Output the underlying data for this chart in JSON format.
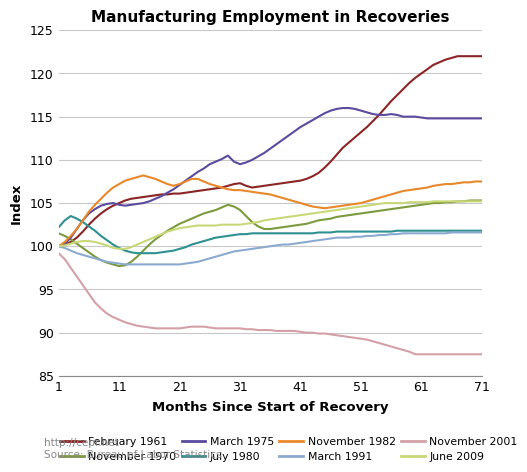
{
  "title": "Manufacturing Employment in Recoveries",
  "xlabel": "Months Since Start of Recovery",
  "ylabel": "Index",
  "xlim": [
    1,
    71
  ],
  "ylim": [
    85,
    125
  ],
  "yticks": [
    85,
    90,
    95,
    100,
    105,
    110,
    115,
    120,
    125
  ],
  "xticks": [
    1,
    11,
    21,
    31,
    41,
    51,
    61,
    71
  ],
  "source_text": "http://cepr.net\nSource: Bureau of Labor Statistics",
  "legend_order": [
    "February 1961",
    "November 1970",
    "March 1975",
    "July 1980",
    "November 1982",
    "March 1991",
    "November 2001",
    "June 2009"
  ],
  "series": [
    {
      "label": "February 1961",
      "color": "#8B2525",
      "data": [
        100.0,
        100.2,
        100.5,
        101.0,
        101.7,
        102.5,
        103.2,
        103.8,
        104.3,
        104.7,
        105.0,
        105.3,
        105.5,
        105.6,
        105.7,
        105.8,
        105.9,
        106.0,
        106.0,
        106.1,
        106.1,
        106.2,
        106.3,
        106.4,
        106.5,
        106.6,
        106.7,
        106.8,
        107.0,
        107.2,
        107.3,
        107.0,
        106.8,
        106.9,
        107.0,
        107.1,
        107.2,
        107.3,
        107.4,
        107.5,
        107.6,
        107.8,
        108.1,
        108.5,
        109.1,
        109.8,
        110.6,
        111.4,
        112.0,
        112.6,
        113.2,
        113.8,
        114.5,
        115.2,
        116.0,
        116.8,
        117.5,
        118.2,
        118.9,
        119.5,
        120.0,
        120.5,
        121.0,
        121.3,
        121.6,
        121.8,
        122.0,
        122.0,
        122.0,
        122.0,
        122.0
      ]
    },
    {
      "label": "November 1970",
      "color": "#7B9B3E",
      "data": [
        101.5,
        101.2,
        100.8,
        100.3,
        99.8,
        99.3,
        98.8,
        98.4,
        98.1,
        97.9,
        97.7,
        97.8,
        98.2,
        98.8,
        99.5,
        100.2,
        100.8,
        101.3,
        101.8,
        102.2,
        102.6,
        102.9,
        103.2,
        103.5,
        103.8,
        104.0,
        104.2,
        104.5,
        104.8,
        104.6,
        104.2,
        103.5,
        102.8,
        102.3,
        102.0,
        102.0,
        102.1,
        102.2,
        102.3,
        102.4,
        102.5,
        102.6,
        102.8,
        103.0,
        103.1,
        103.2,
        103.4,
        103.5,
        103.6,
        103.7,
        103.8,
        103.9,
        104.0,
        104.1,
        104.2,
        104.3,
        104.4,
        104.5,
        104.6,
        104.7,
        104.8,
        104.9,
        105.0,
        105.0,
        105.1,
        105.1,
        105.2,
        105.2,
        105.3,
        105.3,
        105.3
      ]
    },
    {
      "label": "March 1975",
      "color": "#5B4A9E",
      "data": [
        100.0,
        100.3,
        101.0,
        102.0,
        103.0,
        103.8,
        104.3,
        104.7,
        104.9,
        105.0,
        104.8,
        104.7,
        104.8,
        104.9,
        105.0,
        105.2,
        105.5,
        105.8,
        106.2,
        106.6,
        107.1,
        107.6,
        108.1,
        108.6,
        109.0,
        109.5,
        109.8,
        110.1,
        110.5,
        109.8,
        109.5,
        109.7,
        110.0,
        110.4,
        110.8,
        111.3,
        111.8,
        112.3,
        112.8,
        113.3,
        113.8,
        114.2,
        114.6,
        115.0,
        115.4,
        115.7,
        115.9,
        116.0,
        116.0,
        115.9,
        115.7,
        115.5,
        115.3,
        115.2,
        115.2,
        115.3,
        115.2,
        115.0,
        115.0,
        115.0,
        114.9,
        114.8,
        114.8,
        114.8,
        114.8,
        114.8,
        114.8,
        114.8,
        114.8,
        114.8,
        114.8
      ]
    },
    {
      "label": "July 1980",
      "color": "#2E9090",
      "data": [
        102.2,
        103.0,
        103.5,
        103.2,
        102.8,
        102.3,
        101.8,
        101.2,
        100.7,
        100.2,
        99.8,
        99.5,
        99.3,
        99.2,
        99.2,
        99.2,
        99.2,
        99.3,
        99.4,
        99.5,
        99.7,
        99.9,
        100.2,
        100.4,
        100.6,
        100.8,
        101.0,
        101.1,
        101.2,
        101.3,
        101.4,
        101.4,
        101.5,
        101.5,
        101.5,
        101.5,
        101.5,
        101.5,
        101.5,
        101.5,
        101.5,
        101.5,
        101.5,
        101.6,
        101.6,
        101.6,
        101.7,
        101.7,
        101.7,
        101.7,
        101.7,
        101.7,
        101.7,
        101.7,
        101.7,
        101.7,
        101.8,
        101.8,
        101.8,
        101.8,
        101.8,
        101.8,
        101.8,
        101.8,
        101.8,
        101.8,
        101.8,
        101.8,
        101.8,
        101.8,
        101.8
      ]
    },
    {
      "label": "November 1982",
      "color": "#E8882A",
      "data": [
        100.0,
        100.5,
        101.2,
        102.0,
        103.0,
        104.0,
        104.8,
        105.5,
        106.2,
        106.8,
        107.2,
        107.6,
        107.8,
        108.0,
        108.2,
        108.0,
        107.8,
        107.5,
        107.2,
        107.0,
        107.2,
        107.5,
        107.8,
        107.8,
        107.5,
        107.2,
        107.0,
        106.8,
        106.6,
        106.5,
        106.5,
        106.4,
        106.3,
        106.2,
        106.1,
        106.0,
        105.8,
        105.6,
        105.4,
        105.2,
        105.0,
        104.8,
        104.6,
        104.5,
        104.4,
        104.5,
        104.6,
        104.7,
        104.8,
        104.9,
        105.0,
        105.2,
        105.4,
        105.6,
        105.8,
        106.0,
        106.2,
        106.4,
        106.5,
        106.6,
        106.7,
        106.8,
        107.0,
        107.1,
        107.2,
        107.2,
        107.3,
        107.4,
        107.4,
        107.5,
        107.5
      ]
    },
    {
      "label": "March 1991",
      "color": "#8BAAD0",
      "data": [
        100.0,
        99.8,
        99.5,
        99.2,
        99.0,
        98.8,
        98.6,
        98.4,
        98.2,
        98.1,
        98.0,
        97.9,
        97.9,
        97.9,
        97.9,
        97.9,
        97.9,
        97.9,
        97.9,
        97.9,
        97.9,
        98.0,
        98.1,
        98.2,
        98.4,
        98.6,
        98.8,
        99.0,
        99.2,
        99.4,
        99.5,
        99.6,
        99.7,
        99.8,
        99.9,
        100.0,
        100.1,
        100.2,
        100.2,
        100.3,
        100.4,
        100.5,
        100.6,
        100.7,
        100.8,
        100.9,
        101.0,
        101.0,
        101.0,
        101.1,
        101.1,
        101.2,
        101.2,
        101.3,
        101.3,
        101.4,
        101.4,
        101.5,
        101.5,
        101.5,
        101.5,
        101.5,
        101.5,
        101.5,
        101.5,
        101.6,
        101.6,
        101.6,
        101.6,
        101.6,
        101.6
      ]
    },
    {
      "label": "November 2001",
      "color": "#D4A0A8",
      "data": [
        99.2,
        98.5,
        97.5,
        96.5,
        95.5,
        94.5,
        93.5,
        92.8,
        92.2,
        91.8,
        91.5,
        91.2,
        91.0,
        90.8,
        90.7,
        90.6,
        90.5,
        90.5,
        90.5,
        90.5,
        90.5,
        90.6,
        90.7,
        90.7,
        90.7,
        90.6,
        90.5,
        90.5,
        90.5,
        90.5,
        90.5,
        90.4,
        90.4,
        90.3,
        90.3,
        90.3,
        90.2,
        90.2,
        90.2,
        90.2,
        90.1,
        90.0,
        90.0,
        89.9,
        89.9,
        89.8,
        89.7,
        89.6,
        89.5,
        89.4,
        89.3,
        89.2,
        89.0,
        88.8,
        88.6,
        88.4,
        88.2,
        88.0,
        87.8,
        87.5,
        87.5,
        87.5,
        87.5,
        87.5,
        87.5,
        87.5,
        87.5,
        87.5,
        87.5,
        87.5,
        87.5
      ]
    },
    {
      "label": "June 2009",
      "color": "#C8D878",
      "data": [
        100.0,
        100.1,
        100.3,
        100.5,
        100.6,
        100.6,
        100.5,
        100.3,
        100.1,
        99.8,
        99.7,
        99.7,
        99.9,
        100.2,
        100.5,
        100.8,
        101.1,
        101.4,
        101.7,
        101.9,
        102.1,
        102.2,
        102.3,
        102.4,
        102.4,
        102.4,
        102.4,
        102.5,
        102.5,
        102.5,
        102.5,
        102.6,
        102.7,
        102.8,
        103.0,
        103.1,
        103.2,
        103.3,
        103.4,
        103.5,
        103.6,
        103.7,
        103.8,
        103.9,
        104.0,
        104.1,
        104.2,
        104.3,
        104.4,
        104.5,
        104.6,
        104.7,
        104.8,
        104.9,
        105.0,
        105.0,
        105.0,
        105.0,
        105.1,
        105.1,
        105.1,
        105.1,
        105.2,
        105.2,
        105.2,
        105.2,
        105.2,
        105.2,
        105.2,
        105.2,
        105.2
      ]
    }
  ]
}
